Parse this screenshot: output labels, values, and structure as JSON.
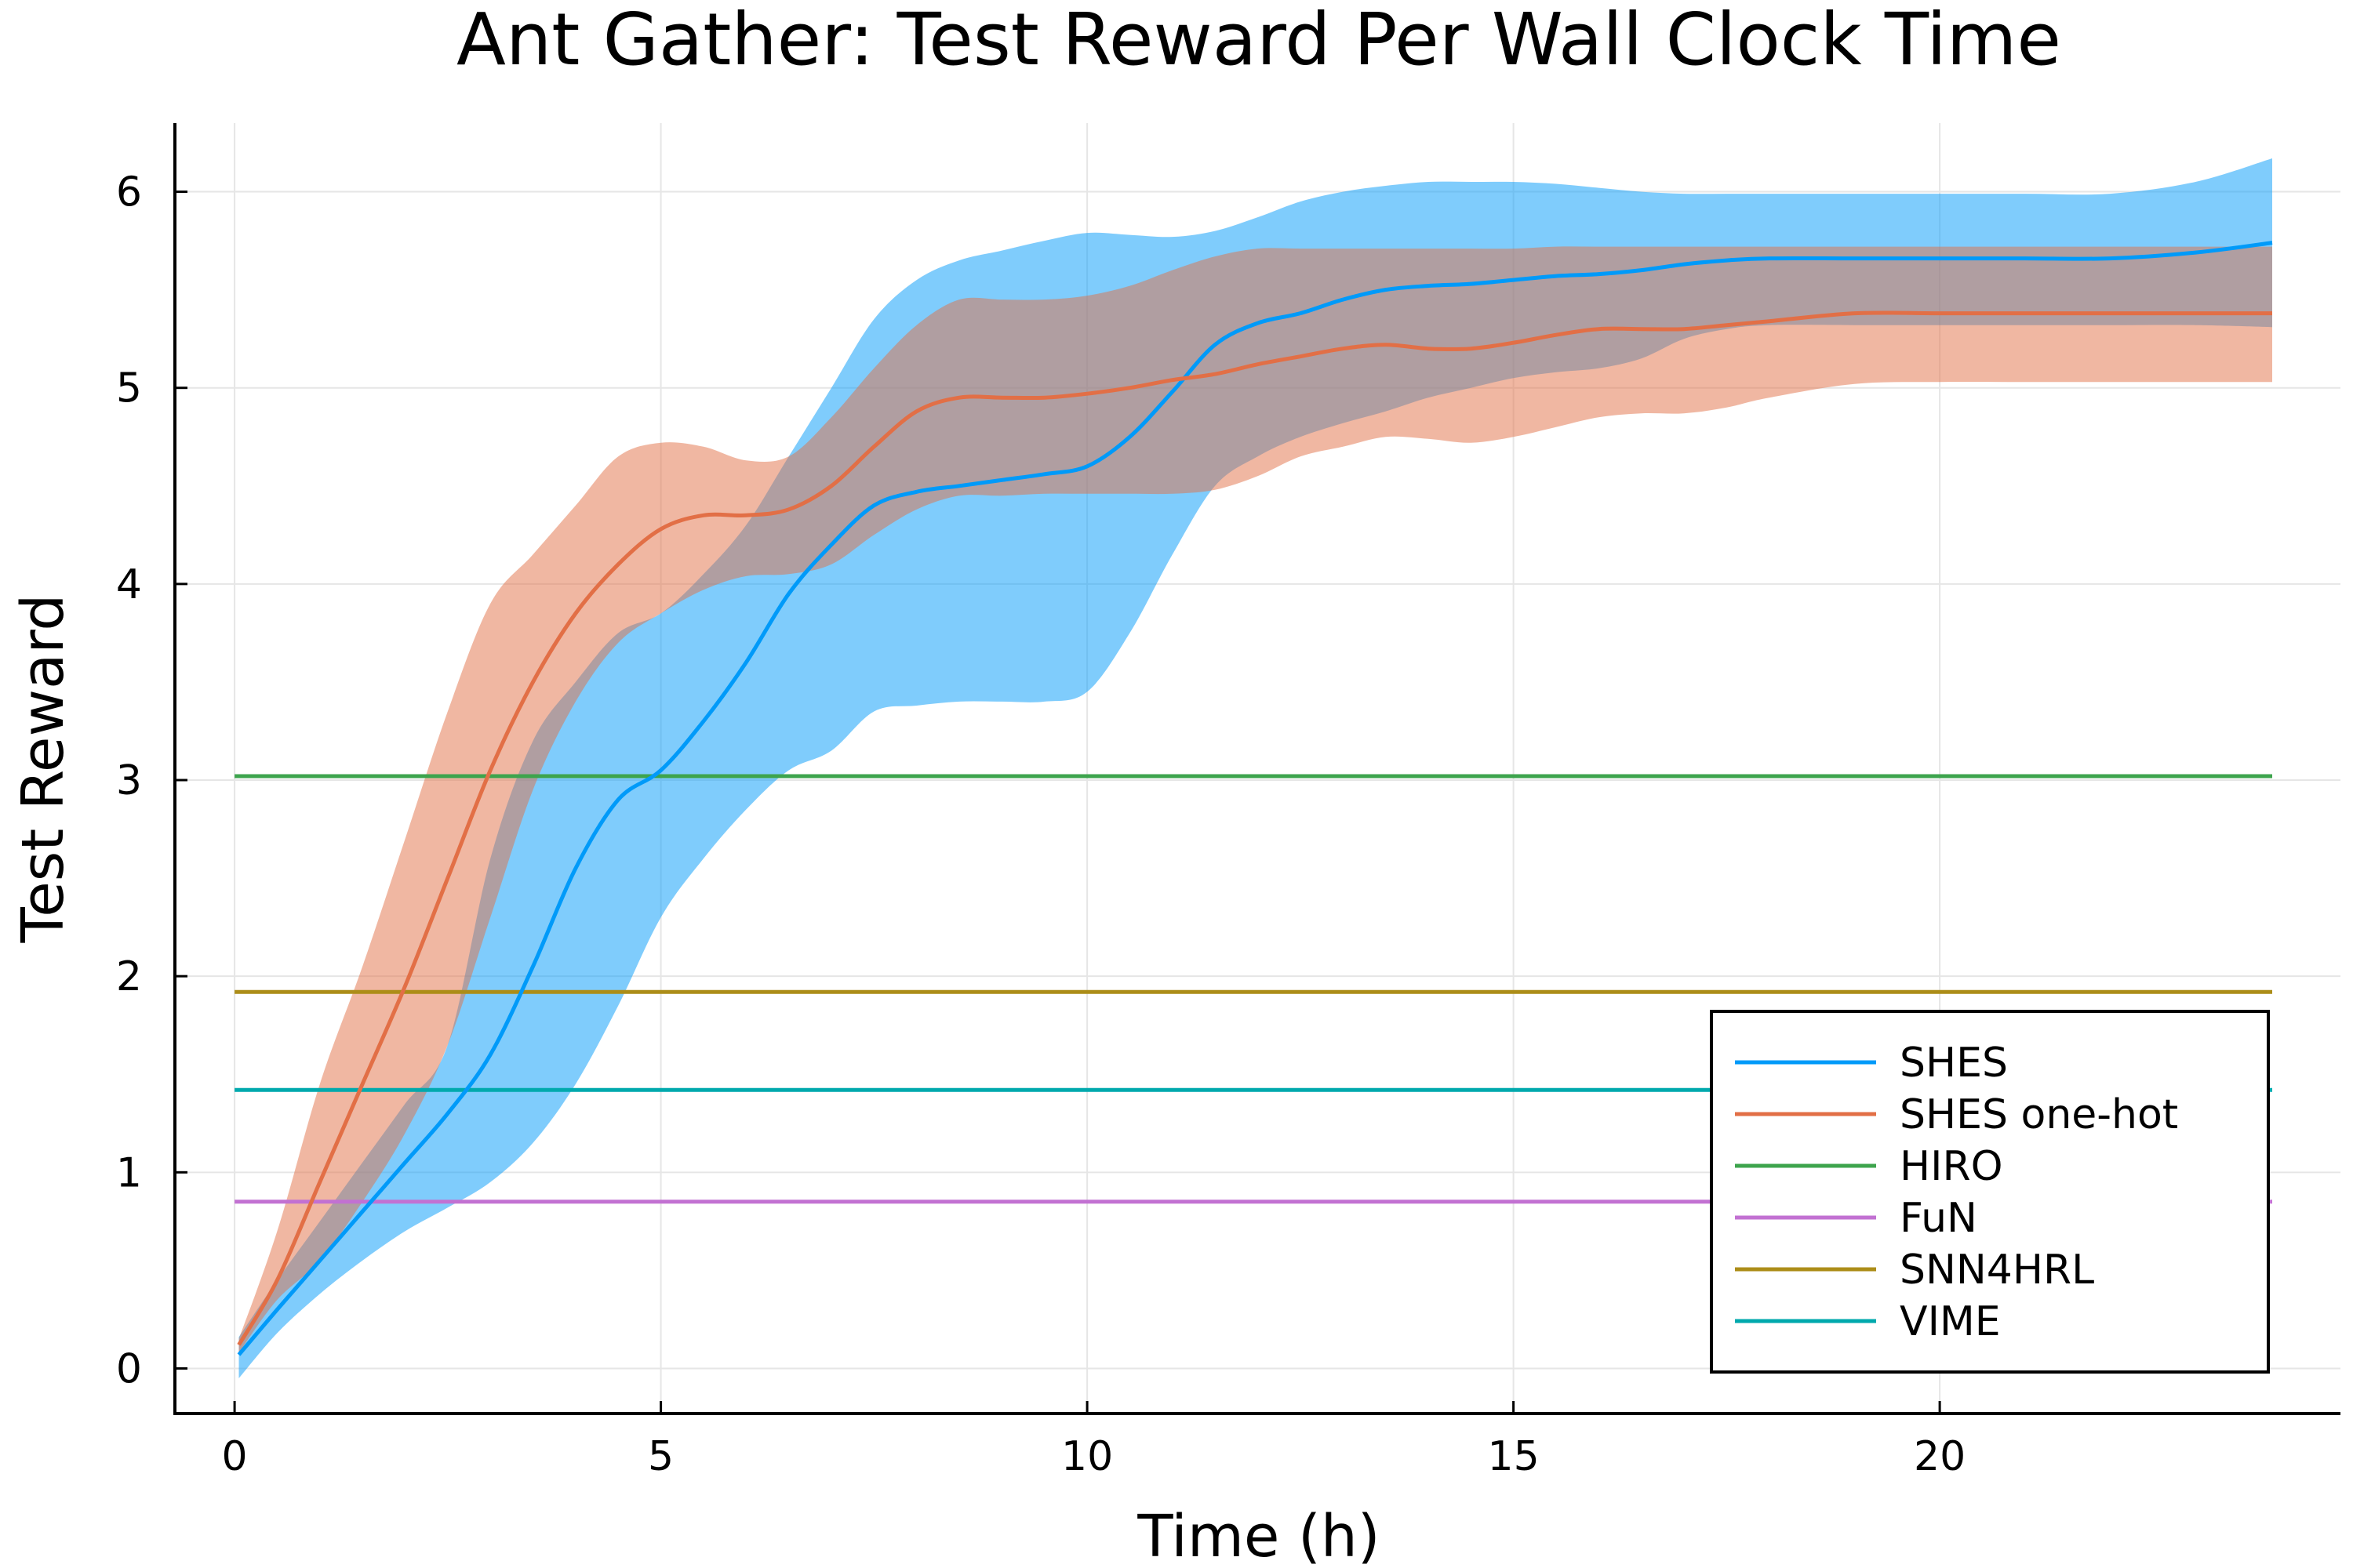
{
  "chart_data": {
    "type": "line",
    "title": "Ant Gather: Test Reward Per Wall Clock Time",
    "xlabel": "Time (h)",
    "ylabel": "Test Reward",
    "xlim": [
      -0.7,
      24.7
    ],
    "ylim": [
      -0.23,
      6.35
    ],
    "xticks": [
      0,
      5,
      10,
      15,
      20
    ],
    "yticks": [
      0,
      1,
      2,
      3,
      4,
      5,
      6
    ],
    "grid": true,
    "legend_position": "bottom-right",
    "series": [
      {
        "name": "SHES",
        "color": "#009af9",
        "band_opacity": 0.5,
        "x": [
          0.05,
          0.5,
          1,
          1.5,
          2,
          2.5,
          3,
          3.5,
          4,
          4.5,
          5,
          5.5,
          6,
          6.5,
          7,
          7.5,
          8,
          8.5,
          9,
          9.5,
          10,
          10.5,
          11,
          11.5,
          12,
          12.5,
          13,
          13.5,
          14,
          14.5,
          15,
          15.5,
          16,
          16.5,
          17,
          17.5,
          18,
          19,
          20,
          21,
          22,
          23,
          23.9
        ],
        "y": [
          0.07,
          0.3,
          0.55,
          0.8,
          1.05,
          1.3,
          1.6,
          2.05,
          2.55,
          2.9,
          3.05,
          3.3,
          3.6,
          3.95,
          4.2,
          4.4,
          4.47,
          4.5,
          4.53,
          4.56,
          4.6,
          4.75,
          4.98,
          5.22,
          5.33,
          5.38,
          5.45,
          5.5,
          5.52,
          5.53,
          5.55,
          5.57,
          5.58,
          5.6,
          5.63,
          5.65,
          5.66,
          5.66,
          5.66,
          5.66,
          5.66,
          5.69,
          5.74
        ],
        "lower": [
          -0.05,
          0.18,
          0.38,
          0.55,
          0.7,
          0.82,
          0.95,
          1.15,
          1.45,
          1.85,
          2.3,
          2.6,
          2.85,
          3.05,
          3.15,
          3.35,
          3.38,
          3.4,
          3.4,
          3.4,
          3.45,
          3.75,
          4.15,
          4.5,
          4.65,
          4.75,
          4.82,
          4.88,
          4.95,
          5.0,
          5.05,
          5.08,
          5.1,
          5.15,
          5.25,
          5.3,
          5.32,
          5.32,
          5.32,
          5.32,
          5.32,
          5.32,
          5.31
        ],
        "upper": [
          0.16,
          0.45,
          0.75,
          1.05,
          1.35,
          1.65,
          2.6,
          3.2,
          3.5,
          3.75,
          3.85,
          4.05,
          4.3,
          4.65,
          5.0,
          5.35,
          5.55,
          5.65,
          5.7,
          5.75,
          5.79,
          5.78,
          5.77,
          5.8,
          5.87,
          5.95,
          6.0,
          6.03,
          6.05,
          6.05,
          6.05,
          6.04,
          6.02,
          6.0,
          5.99,
          5.99,
          5.99,
          5.99,
          5.99,
          5.99,
          5.99,
          6.05,
          6.17
        ]
      },
      {
        "name": "SHES one-hot",
        "color": "#e26f46",
        "band_opacity": 0.5,
        "x": [
          0.05,
          0.5,
          1,
          1.5,
          2,
          2.5,
          3,
          3.5,
          4,
          4.5,
          5,
          5.5,
          6,
          6.5,
          7,
          7.5,
          8,
          8.5,
          9,
          9.5,
          10,
          10.5,
          11,
          11.5,
          12,
          12.5,
          13,
          13.5,
          14,
          14.5,
          15,
          15.5,
          16,
          16.5,
          17,
          17.5,
          18,
          19,
          20,
          21,
          22,
          23,
          23.9
        ],
        "y": [
          0.12,
          0.45,
          0.95,
          1.45,
          1.95,
          2.5,
          3.05,
          3.5,
          3.85,
          4.1,
          4.28,
          4.35,
          4.35,
          4.38,
          4.5,
          4.7,
          4.88,
          4.95,
          4.95,
          4.95,
          4.97,
          5.0,
          5.04,
          5.07,
          5.12,
          5.16,
          5.2,
          5.22,
          5.2,
          5.2,
          5.23,
          5.27,
          5.3,
          5.3,
          5.3,
          5.32,
          5.34,
          5.38,
          5.38,
          5.38,
          5.38,
          5.38,
          5.38
        ],
        "lower": [
          0.08,
          0.35,
          0.55,
          0.85,
          1.2,
          1.65,
          2.3,
          2.95,
          3.4,
          3.7,
          3.85,
          3.97,
          4.04,
          4.05,
          4.1,
          4.25,
          4.38,
          4.45,
          4.45,
          4.46,
          4.46,
          4.46,
          4.46,
          4.48,
          4.55,
          4.65,
          4.7,
          4.75,
          4.74,
          4.72,
          4.75,
          4.8,
          4.85,
          4.87,
          4.87,
          4.9,
          4.95,
          5.02,
          5.03,
          5.03,
          5.03,
          5.03,
          5.03
        ],
        "upper": [
          0.15,
          0.7,
          1.45,
          2.05,
          2.7,
          3.35,
          3.9,
          4.15,
          4.4,
          4.65,
          4.72,
          4.7,
          4.63,
          4.65,
          4.85,
          5.1,
          5.32,
          5.45,
          5.45,
          5.45,
          5.47,
          5.52,
          5.6,
          5.67,
          5.71,
          5.71,
          5.71,
          5.71,
          5.71,
          5.71,
          5.71,
          5.72,
          5.72,
          5.72,
          5.72,
          5.72,
          5.72,
          5.72,
          5.72,
          5.72,
          5.72,
          5.72,
          5.72
        ]
      },
      {
        "name": "HIRO",
        "color": "#3da44d",
        "x": [
          0,
          23.9
        ],
        "y": [
          3.02,
          3.02
        ]
      },
      {
        "name": "FuN",
        "color": "#c271d2",
        "x": [
          0,
          23.9
        ],
        "y": [
          0.85,
          0.85
        ]
      },
      {
        "name": "SNN4HRL",
        "color": "#ac8d18",
        "x": [
          0,
          23.9
        ],
        "y": [
          1.92,
          1.92
        ]
      },
      {
        "name": "VIME",
        "color": "#00a9ad",
        "x": [
          0,
          23.9
        ],
        "y": [
          1.42,
          1.42
        ]
      }
    ]
  }
}
